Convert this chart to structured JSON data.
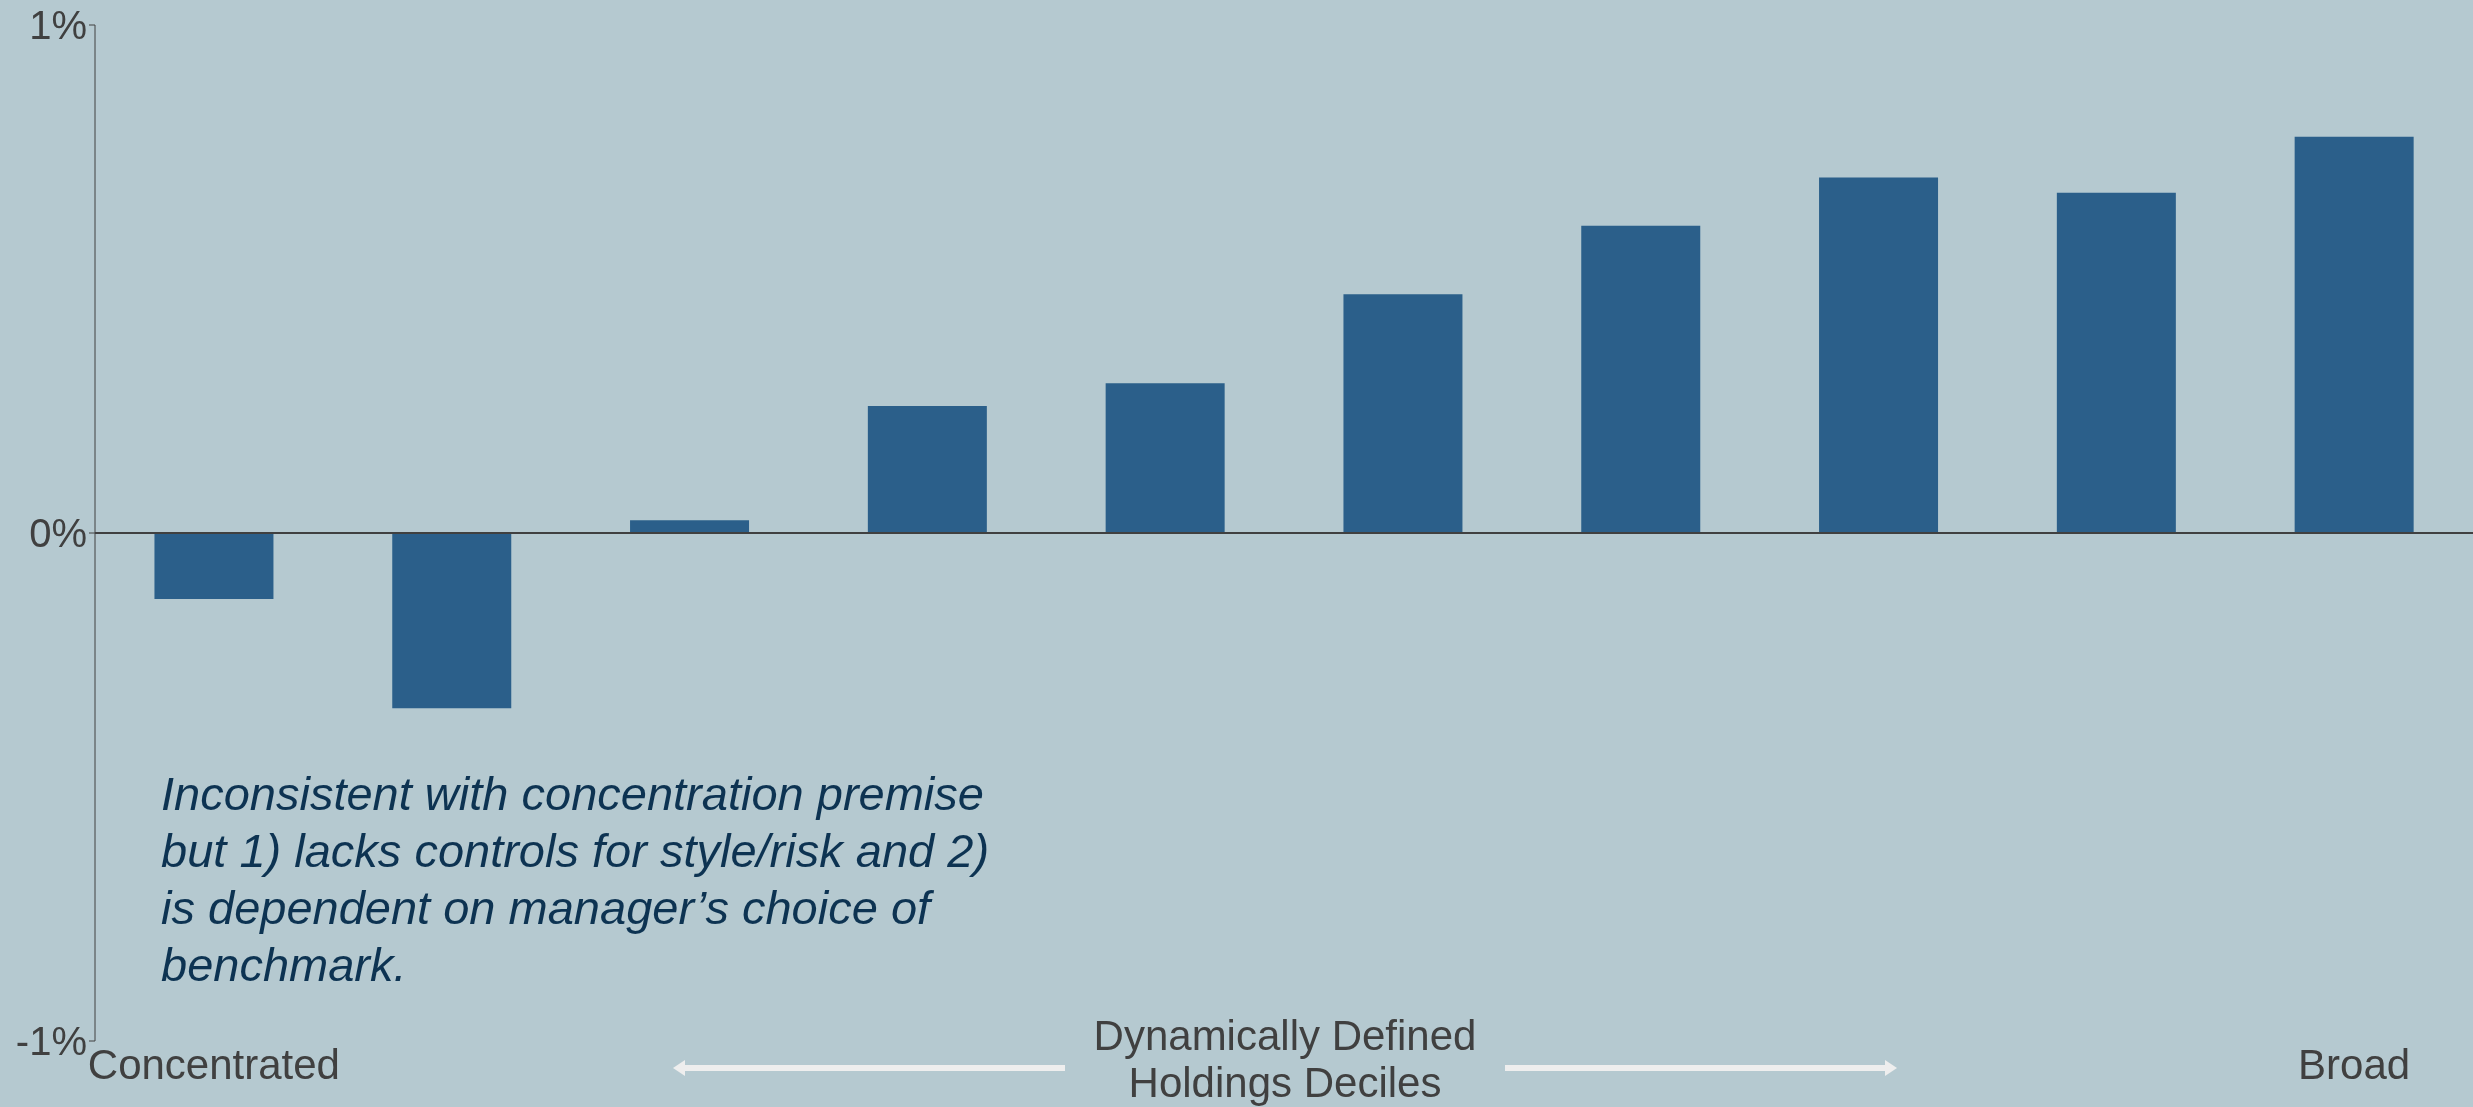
{
  "chart_data": {
    "type": "bar",
    "categories": [
      "Concentrated",
      null,
      null,
      null,
      null,
      null,
      null,
      null,
      null,
      "Broad"
    ],
    "values": [
      -0.13,
      -0.345,
      0.025,
      0.25,
      0.295,
      0.47,
      0.605,
      0.7,
      0.67,
      0.78
    ],
    "color": "#2b5f8a",
    "ylim": [
      -1,
      1
    ],
    "yticks": [
      {
        "value": -1,
        "label": "-1%"
      },
      {
        "value": 0,
        "label": "0%"
      },
      {
        "value": 1,
        "label": "1%"
      }
    ],
    "xlabel": "Dynamically Defined Holdings Deciles",
    "annotations": [
      "Inconsistent with concentration premise but 1) lacks controls for style/risk and 2) is dependent on manager’s choice of benchmark."
    ],
    "ref_lines": [
      {
        "axis": "y",
        "value": 0,
        "color": "#404040"
      }
    ],
    "legend": false
  }
}
